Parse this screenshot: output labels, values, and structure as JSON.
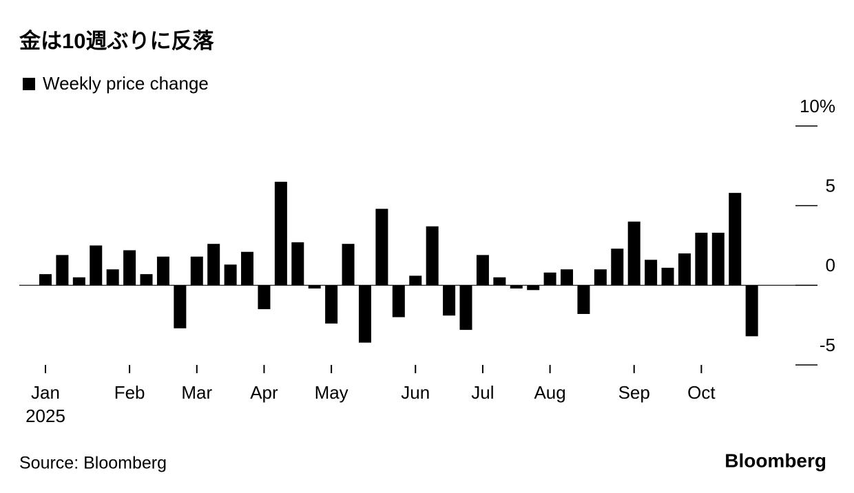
{
  "chart_data": {
    "type": "bar",
    "title": "金は10週ぶりに反落",
    "legend": "Weekly price change",
    "color": "#000000",
    "categories": [
      "Jan",
      null,
      null,
      null,
      null,
      "Feb",
      null,
      null,
      null,
      "Mar",
      null,
      null,
      null,
      "Apr",
      null,
      null,
      null,
      "May",
      null,
      null,
      null,
      null,
      "Jun",
      null,
      null,
      null,
      "Jul",
      null,
      null,
      null,
      "Aug",
      null,
      null,
      null,
      null,
      "Sep",
      null,
      null,
      null,
      "Oct",
      null,
      null,
      null
    ],
    "year_label": "2025",
    "values": [
      0.7,
      1.9,
      0.5,
      2.5,
      1.0,
      2.2,
      0.7,
      1.8,
      -2.7,
      1.8,
      2.6,
      1.3,
      2.1,
      -1.5,
      6.5,
      2.7,
      -0.2,
      -2.4,
      2.6,
      -3.6,
      4.8,
      -2.0,
      0.6,
      3.7,
      -1.9,
      -2.8,
      1.9,
      0.5,
      -0.2,
      -0.3,
      0.8,
      1.0,
      -1.8,
      1.0,
      2.3,
      4.0,
      1.6,
      1.1,
      2.0,
      3.3,
      3.3,
      5.8,
      -3.2
    ],
    "ylim": [
      -5,
      10
    ],
    "yticks": [
      -5,
      0,
      5,
      {
        "value": 10,
        "label": "10%"
      }
    ],
    "source": "Source: Bloomberg",
    "brand": "Bloomberg"
  }
}
